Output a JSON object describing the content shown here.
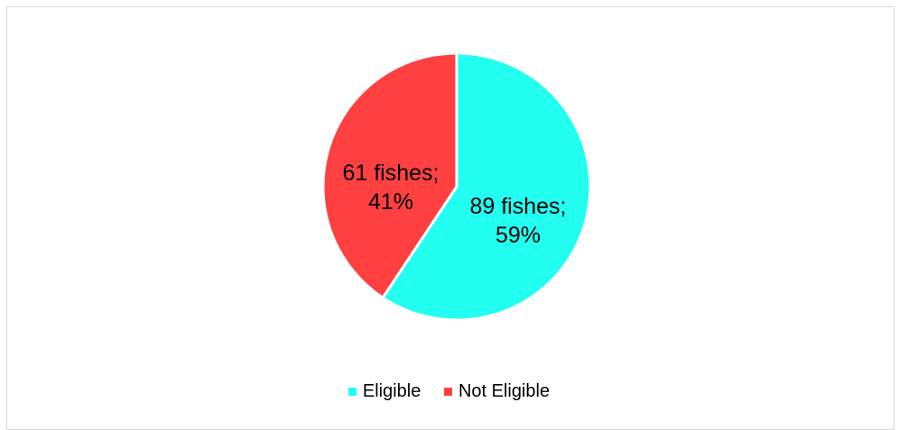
{
  "chart_data": {
    "type": "pie",
    "title": "",
    "series": [
      {
        "values": [
          {
            "label": "Eligible",
            "value": 89,
            "percent": 59,
            "data_label": "89 fishes;",
            "data_label_pct": "59%",
            "color": "#22fff0"
          },
          {
            "label": "Not Eligible",
            "value": 61,
            "percent": 41,
            "data_label": "61 fishes;",
            "data_label_pct": "41%",
            "color": "#ff4040"
          }
        ]
      }
    ],
    "legend": {
      "position": "bottom",
      "items": [
        {
          "label": "Eligible",
          "color": "#22fff0"
        },
        {
          "label": "Not Eligible",
          "color": "#ff4040"
        }
      ]
    }
  }
}
